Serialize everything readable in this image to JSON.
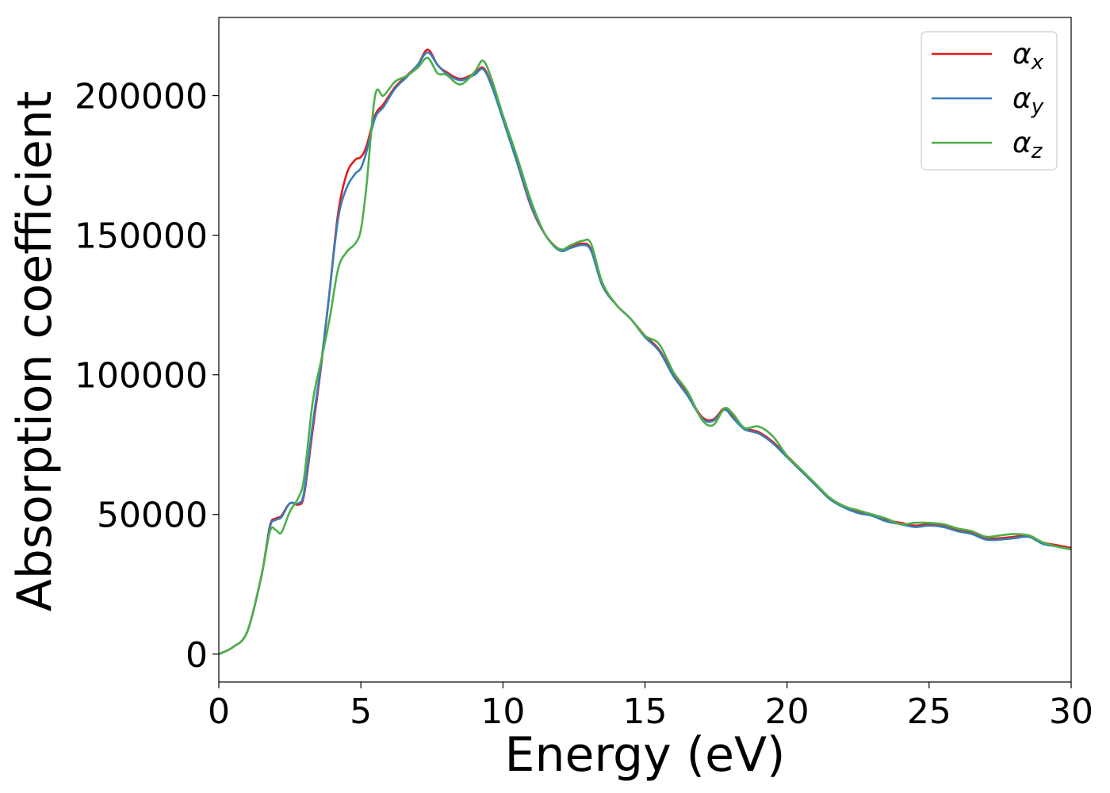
{
  "chart_data": {
    "type": "line",
    "xlabel": "Energy (eV)",
    "ylabel": "Absorption coefficient",
    "xlim": [
      0,
      30
    ],
    "ylim": [
      -10000,
      228000
    ],
    "xticks": [
      0,
      5,
      10,
      15,
      20,
      25,
      30
    ],
    "xtick_labels": [
      "0",
      "5",
      "10",
      "15",
      "20",
      "25",
      "30"
    ],
    "yticks": [
      0,
      50000,
      100000,
      150000,
      200000
    ],
    "ytick_labels": [
      "0",
      "50000",
      "100000",
      "150000",
      "200000"
    ],
    "grid": false,
    "legend_position": "top-right",
    "series": [
      {
        "name": "αx",
        "symbol": "α",
        "subscript": "x",
        "color": "#e41a1c",
        "x": [
          0,
          0.5,
          1.0,
          1.5,
          1.8,
          2.0,
          2.2,
          2.5,
          2.8,
          3.0,
          3.3,
          3.6,
          3.9,
          4.2,
          4.5,
          4.8,
          5.0,
          5.2,
          5.5,
          5.8,
          6.2,
          6.6,
          7.0,
          7.35,
          7.7,
          8.0,
          8.5,
          9.0,
          9.3,
          9.6,
          10.0,
          10.5,
          11.0,
          11.5,
          12.0,
          12.4,
          12.8,
          13.1,
          13.5,
          14.0,
          14.5,
          15.0,
          15.5,
          16.0,
          16.5,
          17.0,
          17.4,
          17.8,
          18.1,
          18.5,
          19.0,
          19.5,
          20.0,
          20.5,
          21.0,
          21.5,
          22.0,
          22.5,
          23.0,
          23.5,
          24.0,
          24.5,
          25.0,
          25.5,
          26.0,
          26.5,
          27.0,
          27.5,
          28.0,
          28.5,
          29.0,
          29.5,
          30.0
        ],
        "y": [
          0,
          2500,
          8000,
          28000,
          46000,
          48500,
          49500,
          54000,
          53500,
          57000,
          80000,
          103000,
          130000,
          158000,
          172000,
          177000,
          178000,
          182000,
          193000,
          197000,
          203000,
          207000,
          211000,
          216500,
          211000,
          208500,
          206000,
          208000,
          210000,
          204000,
          192000,
          176000,
          160000,
          150000,
          145000,
          146000,
          147000,
          145000,
          132000,
          125000,
          120000,
          114000,
          109000,
          100000,
          93000,
          85000,
          84000,
          88000,
          85000,
          81000,
          79500,
          76000,
          71000,
          66000,
          61000,
          56000,
          53000,
          51000,
          50000,
          48000,
          47000,
          46000,
          46500,
          46000,
          44500,
          43500,
          41500,
          41500,
          42000,
          42500,
          40000,
          39000,
          38000
        ]
      },
      {
        "name": "αy",
        "symbol": "α",
        "subscript": "y",
        "color": "#377eb8",
        "x": [
          0,
          0.5,
          1.0,
          1.5,
          1.8,
          2.0,
          2.2,
          2.5,
          2.8,
          3.0,
          3.3,
          3.6,
          3.9,
          4.2,
          4.5,
          4.8,
          5.0,
          5.2,
          5.5,
          5.8,
          6.2,
          6.6,
          7.0,
          7.35,
          7.7,
          8.0,
          8.5,
          9.0,
          9.3,
          9.6,
          10.0,
          10.5,
          11.0,
          11.5,
          12.0,
          12.4,
          12.8,
          13.1,
          13.5,
          14.0,
          14.5,
          15.0,
          15.5,
          16.0,
          16.5,
          17.0,
          17.4,
          17.8,
          18.1,
          18.5,
          19.0,
          19.5,
          20.0,
          20.5,
          21.0,
          21.5,
          22.0,
          22.5,
          23.0,
          23.5,
          24.0,
          24.5,
          25.0,
          25.5,
          26.0,
          26.5,
          27.0,
          27.5,
          28.0,
          28.5,
          29.0,
          29.5,
          30.0
        ],
        "y": [
          0,
          2500,
          8000,
          28000,
          45500,
          48000,
          49000,
          54000,
          54000,
          58000,
          82000,
          104000,
          130000,
          156000,
          167000,
          172000,
          174000,
          180000,
          192000,
          196000,
          202500,
          206500,
          211000,
          215500,
          211000,
          208000,
          205500,
          207500,
          209500,
          203500,
          191500,
          176000,
          160500,
          150000,
          144500,
          145500,
          146500,
          144500,
          132000,
          125000,
          120000,
          113500,
          108500,
          99500,
          92500,
          84500,
          83500,
          87500,
          84500,
          80500,
          79000,
          75500,
          70500,
          65500,
          60500,
          55500,
          52500,
          50500,
          49500,
          47500,
          46500,
          45500,
          46000,
          45500,
          44000,
          43000,
          41000,
          41000,
          41500,
          42000,
          39500,
          38500,
          37500
        ]
      },
      {
        "name": "αz",
        "symbol": "α",
        "subscript": "z",
        "color": "#4daf4a",
        "x": [
          0,
          0.5,
          1.0,
          1.5,
          1.8,
          2.0,
          2.2,
          2.5,
          2.8,
          3.0,
          3.3,
          3.6,
          3.9,
          4.2,
          4.5,
          4.8,
          5.0,
          5.2,
          5.5,
          5.8,
          6.2,
          6.6,
          7.0,
          7.35,
          7.7,
          8.0,
          8.5,
          9.0,
          9.3,
          9.6,
          10.0,
          10.5,
          11.0,
          11.5,
          12.0,
          12.4,
          12.8,
          13.1,
          13.5,
          14.0,
          14.5,
          15.0,
          15.5,
          16.0,
          16.5,
          17.0,
          17.4,
          17.8,
          18.1,
          18.5,
          19.0,
          19.5,
          20.0,
          20.5,
          21.0,
          21.5,
          22.0,
          22.5,
          23.0,
          23.5,
          24.0,
          24.5,
          25.0,
          25.5,
          26.0,
          26.5,
          27.0,
          27.5,
          28.0,
          28.5,
          29.0,
          29.5,
          30.0
        ],
        "y": [
          0,
          2500,
          8000,
          28000,
          44000,
          44500,
          43500,
          51000,
          56000,
          63000,
          90000,
          105000,
          120000,
          138000,
          144000,
          147000,
          152000,
          168000,
          200000,
          200000,
          205000,
          207000,
          210000,
          213500,
          208000,
          207500,
          204000,
          208500,
          212500,
          206000,
          193000,
          178000,
          162000,
          150000,
          145000,
          146500,
          148000,
          147000,
          133000,
          125000,
          120000,
          114000,
          111000,
          101000,
          94000,
          84000,
          82000,
          88000,
          86000,
          81000,
          81500,
          78000,
          71000,
          66000,
          61000,
          56000,
          53000,
          51500,
          50000,
          48500,
          46500,
          47000,
          47000,
          46500,
          45000,
          44000,
          42000,
          42500,
          43000,
          42500,
          40000,
          38500,
          37500
        ]
      }
    ]
  }
}
